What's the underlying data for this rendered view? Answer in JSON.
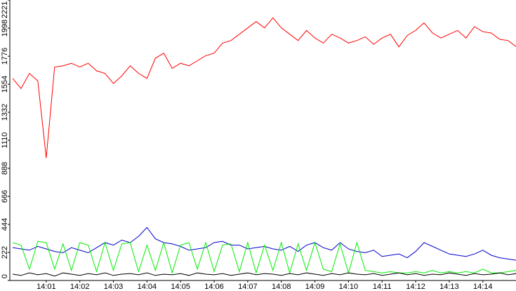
{
  "chart_data": {
    "type": "line",
    "categories": [
      null,
      null,
      null,
      null,
      "14:01",
      null,
      null,
      null,
      "14:02",
      null,
      null,
      null,
      "14:03",
      null,
      null,
      null,
      "14:04",
      null,
      null,
      null,
      "14:05",
      null,
      null,
      null,
      "14:06",
      null,
      null,
      null,
      "14:07",
      null,
      null,
      null,
      "14:08",
      null,
      null,
      null,
      "14:09",
      null,
      null,
      null,
      "14:10",
      null,
      null,
      null,
      "14:11",
      null,
      null,
      null,
      "14:12",
      null,
      null,
      null,
      "14:13",
      null,
      null,
      null,
      "14:14",
      null,
      null,
      null,
      null
    ],
    "series": [
      {
        "color": "#ff0000",
        "values": [
          1600,
          1520,
          1640,
          1580,
          970,
          1690,
          1700,
          1720,
          1690,
          1720,
          1660,
          1640,
          1560,
          1620,
          1700,
          1640,
          1600,
          1760,
          1800,
          1680,
          1720,
          1700,
          1740,
          1780,
          1800,
          1880,
          1900,
          1950,
          2000,
          2050,
          2000,
          2080,
          2000,
          1950,
          1900,
          1980,
          1920,
          1880,
          1950,
          1920,
          1880,
          1900,
          1930,
          1870,
          1920,
          1950,
          1850,
          1940,
          1980,
          2040,
          1960,
          1920,
          1950,
          1980,
          1920,
          2010,
          1970,
          1960,
          1910,
          1900,
          1850
        ]
      },
      {
        "color": "#0000cc",
        "values": [
          260,
          250,
          240,
          270,
          250,
          230,
          220,
          260,
          240,
          220,
          260,
          300,
          280,
          320,
          300,
          350,
          420,
          330,
          300,
          290,
          270,
          240,
          250,
          260,
          300,
          310,
          280,
          280,
          250,
          260,
          270,
          250,
          240,
          270,
          230,
          280,
          300,
          260,
          240,
          300,
          250,
          230,
          220,
          240,
          190,
          200,
          210,
          180,
          230,
          300,
          270,
          240,
          210,
          200,
          190,
          210,
          240,
          200,
          180,
          170,
          160
        ]
      },
      {
        "color": "#00ee00",
        "values": [
          300,
          280,
          90,
          310,
          300,
          90,
          290,
          80,
          300,
          280,
          70,
          300,
          80,
          290,
          300,
          70,
          280,
          80,
          300,
          60,
          280,
          300,
          90,
          300,
          70,
          280,
          290,
          70,
          300,
          60,
          280,
          80,
          300,
          60,
          290,
          80,
          300,
          90,
          70,
          290,
          60,
          300,
          80,
          70,
          60,
          70,
          60,
          60,
          70,
          60,
          80,
          60,
          70,
          60,
          70,
          60,
          90,
          60,
          60,
          70,
          80
        ]
      },
      {
        "color": "#000000",
        "values": [
          50,
          40,
          60,
          45,
          55,
          35,
          60,
          50,
          40,
          55,
          45,
          60,
          40,
          50,
          55,
          45,
          60,
          40,
          50,
          45,
          55,
          40,
          60,
          50,
          45,
          55,
          40,
          50,
          60,
          45,
          55,
          50,
          40,
          55,
          45,
          60,
          50,
          40,
          55,
          45,
          60,
          50,
          45,
          55,
          40,
          50,
          60,
          45,
          55,
          40,
          50,
          45,
          60,
          50,
          40,
          55,
          45,
          50,
          60,
          45,
          55
        ]
      }
    ],
    "ylim": [
      0,
      2221
    ],
    "yticks": [
      0,
      222,
      444,
      666,
      888,
      1110,
      1332,
      1554,
      1776,
      1998,
      2221
    ]
  }
}
